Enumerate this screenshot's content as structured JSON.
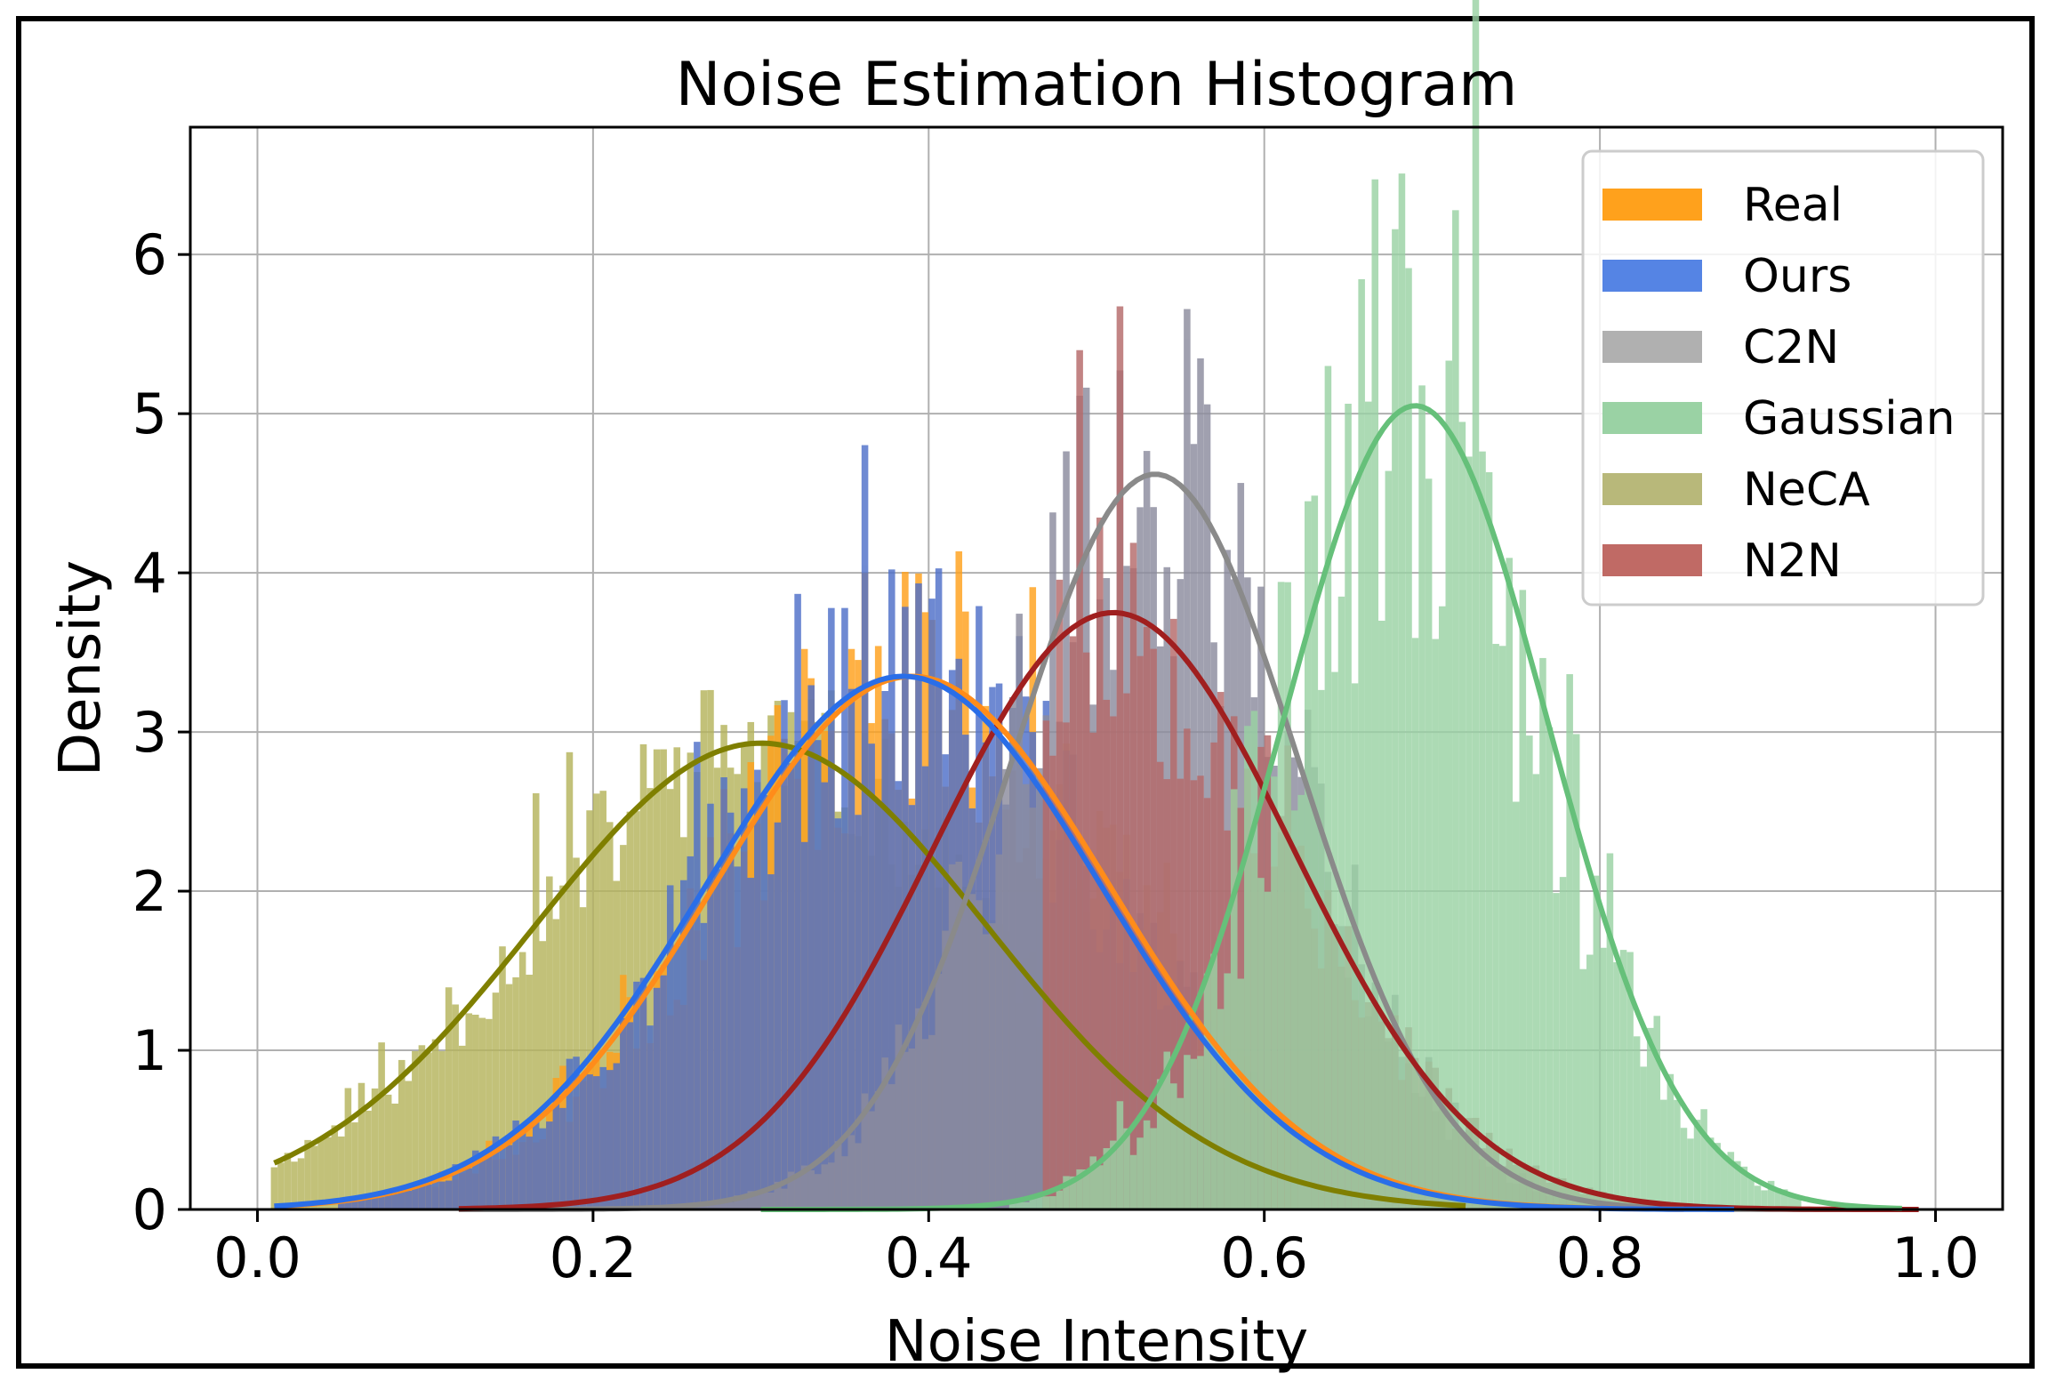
{
  "chart_data": {
    "type": "histogram",
    "title": "Noise Estimation Histogram",
    "xlabel": "Noise Intensity",
    "ylabel": "Density",
    "xlim": [
      -0.04,
      1.04
    ],
    "ylim": [
      0,
      6.8
    ],
    "xticks": [
      0.0,
      0.2,
      0.4,
      0.6,
      0.8,
      1.0
    ],
    "xtick_labels": [
      "0.0",
      "0.2",
      "0.4",
      "0.6",
      "0.8",
      "1.0"
    ],
    "yticks": [
      0,
      1,
      2,
      3,
      4,
      5,
      6
    ],
    "ytick_labels": [
      "0",
      "1",
      "2",
      "3",
      "4",
      "5",
      "6"
    ],
    "grid": true,
    "legend_position": "top-right",
    "bins": {
      "start": 0.0,
      "end": 1.0,
      "count": 250
    },
    "series": [
      {
        "name": "NeCA",
        "color": "#b5b45c",
        "line_color": "#7f7f00",
        "mean": 0.3,
        "std": 0.135,
        "peak": 2.93,
        "fit_range": [
          0.01,
          0.72
        ],
        "hist_range": [
          0.01,
          0.62
        ],
        "noise": 0.35,
        "seed": 11
      },
      {
        "name": "Real",
        "color": "#ffa11c",
        "line_color": "#ff8c1a",
        "mean": 0.39,
        "std": 0.118,
        "peak": 3.35,
        "fit_range": [
          0.01,
          0.85
        ],
        "hist_range": [
          0.05,
          0.62
        ],
        "noise": 0.55,
        "seed": 23
      },
      {
        "name": "Ours",
        "color": "#4f70c9",
        "line_color": "#2a6ee8",
        "mean": 0.385,
        "std": 0.118,
        "peak": 3.35,
        "fit_range": [
          0.01,
          0.88
        ],
        "hist_range": [
          0.05,
          0.6
        ],
        "noise": 0.5,
        "seed": 37
      },
      {
        "name": "C2N",
        "color": "#8c8c9e",
        "line_color": "#8a8a8a",
        "mean": 0.535,
        "std": 0.086,
        "peak": 4.62,
        "fit_range": [
          0.12,
          0.98
        ],
        "hist_range": [
          0.18,
          0.88
        ],
        "noise": 0.55,
        "seed": 41
      },
      {
        "name": "N2N",
        "color": "#b56a6a",
        "line_color": "#a01f1f",
        "mean": 0.51,
        "std": 0.107,
        "peak": 3.75,
        "fit_range": [
          0.12,
          0.99
        ],
        "hist_range": [
          0.47,
          0.98
        ],
        "noise": 0.5,
        "seed": 53
      },
      {
        "name": "Gaussian",
        "color": "#9ad2a4",
        "line_color": "#66c07a",
        "mean": 0.69,
        "std": 0.079,
        "peak": 5.05,
        "fit_range": [
          0.3,
          0.98
        ],
        "hist_range": [
          0.45,
          0.92
        ],
        "noise": 0.7,
        "seed": 67
      }
    ],
    "legend": [
      {
        "name": "Real",
        "color": "#ffa11c"
      },
      {
        "name": "Ours",
        "color": "#5584e4"
      },
      {
        "name": "C2N",
        "color": "#b0b0b0"
      },
      {
        "name": "Gaussian",
        "color": "#9ad2a4"
      },
      {
        "name": "NeCA",
        "color": "#b8b87a"
      },
      {
        "name": "N2N",
        "color": "#c06a65"
      }
    ]
  }
}
